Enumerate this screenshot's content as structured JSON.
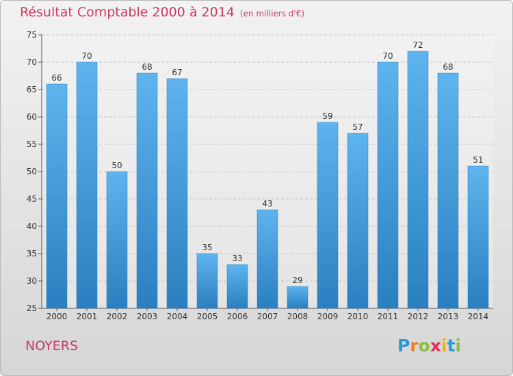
{
  "header": {
    "title": "Résultat Comptable 2000 à 2014",
    "unit": "(en milliers d'€)"
  },
  "commune": "NOYERS",
  "logo": {
    "text": "Proxiti",
    "letters": [
      "P",
      "r",
      "o",
      "x",
      "i",
      "t",
      "i"
    ],
    "colors": [
      "#2a9ad6",
      "#f07e1e",
      "#8ac03d",
      "#e0325a",
      "#f0b21a",
      "#2a9ad6",
      "#8ac03d"
    ]
  },
  "colors": {
    "bar_light": "#5eb4ee",
    "bar_dark": "#2a7fc0",
    "title": "#cc3a63"
  },
  "chart_data": {
    "type": "bar",
    "title": "Résultat Comptable 2000 à 2014",
    "subtitle": "(en milliers d'€)",
    "xlabel": "",
    "ylabel": "",
    "categories": [
      "2000",
      "2001",
      "2002",
      "2003",
      "2004",
      "2005",
      "2006",
      "2007",
      "2008",
      "2009",
      "2010",
      "2011",
      "2012",
      "2013",
      "2014"
    ],
    "values": [
      66,
      70,
      50,
      68,
      67,
      35,
      33,
      43,
      29,
      59,
      57,
      70,
      72,
      68,
      51
    ],
    "data_labels": [
      "66",
      "70",
      "50",
      "68",
      "67",
      "35",
      "33",
      "43",
      "29",
      "59",
      "57",
      "70",
      "72",
      "68",
      "51"
    ],
    "ylim": [
      25,
      75
    ],
    "yticks": [
      "25",
      "30",
      "35",
      "40",
      "45",
      "50",
      "55",
      "60",
      "65",
      "70",
      "75"
    ],
    "grid": true
  }
}
